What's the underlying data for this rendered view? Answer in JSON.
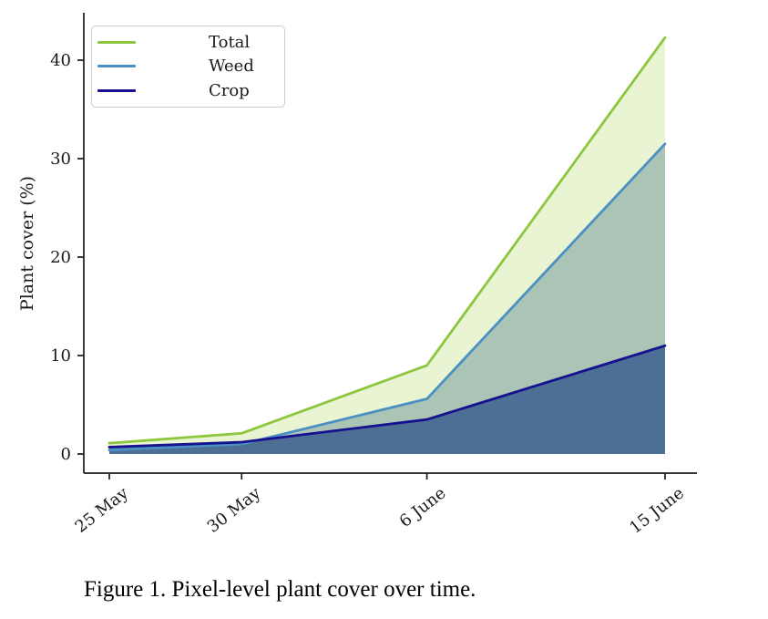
{
  "figure": {
    "caption": "Figure 1. Pixel-level plant cover over time."
  },
  "chart_data": {
    "type": "area",
    "title": "",
    "xlabel": "",
    "ylabel": "Plant cover (%)",
    "x_tick_labels": [
      "25 May",
      "30 May",
      "6 June",
      "15 June"
    ],
    "x_days": [
      0,
      5,
      12,
      21
    ],
    "y_ticks": [
      0,
      10,
      20,
      30,
      40
    ],
    "ylim": [
      -1.9,
      44.7
    ],
    "grid": false,
    "legend_position": "upper left",
    "series": [
      {
        "name": "Total",
        "values": [
          1.1,
          2.1,
          9.0,
          42.3
        ],
        "line_color": "#8dc63f",
        "fill_color": "#9acd32",
        "fill_opacity": 0.22
      },
      {
        "name": "Weed",
        "values": [
          0.4,
          1.0,
          5.6,
          31.5
        ],
        "line_color": "#4a90c2",
        "fill_color": "#6b9498",
        "fill_opacity": 0.5
      },
      {
        "name": "Crop",
        "values": [
          0.7,
          1.2,
          3.5,
          11.0
        ],
        "line_color": "#16128f",
        "fill_color": "#00287a",
        "fill_opacity": 0.55
      }
    ]
  }
}
